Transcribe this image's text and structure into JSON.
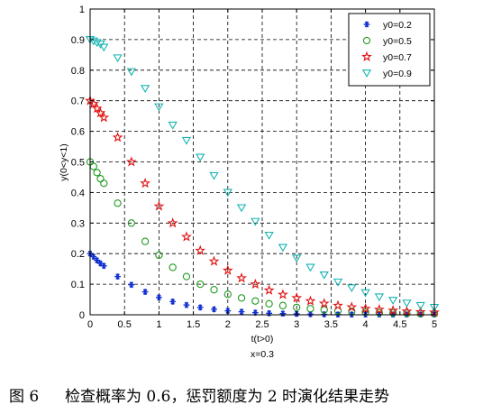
{
  "chart_data": {
    "type": "scatter",
    "title": "",
    "xlabel": "t(t>0)",
    "ylabel": "y(0<y<1)",
    "annotation": "x=0.3",
    "xlim": [
      0,
      5
    ],
    "ylim": [
      0,
      1
    ],
    "xticks": [
      0,
      0.5,
      1,
      1.5,
      2,
      2.5,
      3,
      3.5,
      4,
      4.5,
      5
    ],
    "xtick_labels": [
      "0",
      "0.5",
      "1",
      "1.5",
      "2",
      "2.5",
      "3",
      "3.5",
      "4",
      "4.5",
      "5"
    ],
    "yticks": [
      0,
      0.1,
      0.2,
      0.3,
      0.4,
      0.5,
      0.6,
      0.7,
      0.8,
      0.9,
      1
    ],
    "ytick_labels": [
      "0",
      "0.1",
      "0.2",
      "0.3",
      "0.4",
      "0.5",
      "0.6",
      "0.7",
      "0.8",
      "0.9",
      "1"
    ],
    "grid": true,
    "grid_style": "dashed",
    "legend_position": "top-right",
    "series": [
      {
        "name": "y0=0.2",
        "marker": "asterisk",
        "color": "#1030d0",
        "points": [
          [
            0,
            0.2
          ],
          [
            0.05,
            0.19
          ],
          [
            0.1,
            0.178
          ],
          [
            0.15,
            0.168
          ],
          [
            0.2,
            0.16
          ],
          [
            0.4,
            0.125
          ],
          [
            0.6,
            0.098
          ],
          [
            0.8,
            0.075
          ],
          [
            1,
            0.057
          ],
          [
            1.2,
            0.043
          ],
          [
            1.4,
            0.032
          ],
          [
            1.6,
            0.024
          ],
          [
            1.8,
            0.018
          ],
          [
            2,
            0.013
          ],
          [
            2.2,
            0.01
          ],
          [
            2.4,
            0.007
          ],
          [
            2.6,
            0.005
          ],
          [
            2.8,
            0.004
          ],
          [
            3,
            0.003
          ],
          [
            3.2,
            0.002
          ],
          [
            3.4,
            0.0015
          ],
          [
            3.6,
            0.001
          ],
          [
            3.8,
            0.001
          ],
          [
            4,
            0.001
          ],
          [
            4.2,
            0.001
          ],
          [
            4.4,
            0.001
          ],
          [
            4.6,
            0.001
          ],
          [
            4.8,
            0.001
          ],
          [
            5,
            0.001
          ]
        ]
      },
      {
        "name": "y0=0.5",
        "marker": "circle",
        "color": "#1f9a1f",
        "points": [
          [
            0,
            0.5
          ],
          [
            0.05,
            0.485
          ],
          [
            0.1,
            0.465
          ],
          [
            0.15,
            0.445
          ],
          [
            0.2,
            0.43
          ],
          [
            0.4,
            0.365
          ],
          [
            0.6,
            0.3
          ],
          [
            0.8,
            0.24
          ],
          [
            1,
            0.195
          ],
          [
            1.2,
            0.155
          ],
          [
            1.4,
            0.125
          ],
          [
            1.6,
            0.1
          ],
          [
            1.8,
            0.082
          ],
          [
            2,
            0.067
          ],
          [
            2.2,
            0.055
          ],
          [
            2.4,
            0.045
          ],
          [
            2.6,
            0.036
          ],
          [
            2.8,
            0.03
          ],
          [
            3,
            0.024
          ],
          [
            3.2,
            0.02
          ],
          [
            3.4,
            0.016
          ],
          [
            3.6,
            0.013
          ],
          [
            3.8,
            0.011
          ],
          [
            4,
            0.009
          ],
          [
            4.2,
            0.007
          ],
          [
            4.4,
            0.006
          ],
          [
            4.6,
            0.005
          ],
          [
            4.8,
            0.004
          ],
          [
            5,
            0.004
          ]
        ]
      },
      {
        "name": "y0=0.7",
        "marker": "pentagram",
        "color": "#e01010",
        "points": [
          [
            0,
            0.7
          ],
          [
            0.05,
            0.69
          ],
          [
            0.1,
            0.675
          ],
          [
            0.15,
            0.66
          ],
          [
            0.2,
            0.645
          ],
          [
            0.4,
            0.58
          ],
          [
            0.6,
            0.5
          ],
          [
            0.8,
            0.43
          ],
          [
            1,
            0.355
          ],
          [
            1.2,
            0.3
          ],
          [
            1.4,
            0.255
          ],
          [
            1.6,
            0.21
          ],
          [
            1.8,
            0.175
          ],
          [
            2,
            0.145
          ],
          [
            2.2,
            0.12
          ],
          [
            2.4,
            0.1
          ],
          [
            2.6,
            0.08
          ],
          [
            2.8,
            0.066
          ],
          [
            3,
            0.055
          ],
          [
            3.2,
            0.045
          ],
          [
            3.4,
            0.037
          ],
          [
            3.6,
            0.03
          ],
          [
            3.8,
            0.025
          ],
          [
            4,
            0.02
          ],
          [
            4.2,
            0.017
          ],
          [
            4.4,
            0.014
          ],
          [
            4.6,
            0.011
          ],
          [
            4.8,
            0.009
          ],
          [
            5,
            0.008
          ]
        ]
      },
      {
        "name": "y0=0.9",
        "marker": "triangle-down",
        "color": "#17b3b3",
        "points": [
          [
            0,
            0.9
          ],
          [
            0.05,
            0.895
          ],
          [
            0.1,
            0.89
          ],
          [
            0.15,
            0.885
          ],
          [
            0.2,
            0.875
          ],
          [
            0.4,
            0.84
          ],
          [
            0.6,
            0.795
          ],
          [
            0.8,
            0.74
          ],
          [
            1,
            0.68
          ],
          [
            1.2,
            0.62
          ],
          [
            1.4,
            0.57
          ],
          [
            1.6,
            0.515
          ],
          [
            1.8,
            0.455
          ],
          [
            2,
            0.4
          ],
          [
            2.2,
            0.35
          ],
          [
            2.4,
            0.305
          ],
          [
            2.6,
            0.26
          ],
          [
            2.8,
            0.22
          ],
          [
            3,
            0.185
          ],
          [
            3.2,
            0.155
          ],
          [
            3.4,
            0.13
          ],
          [
            3.6,
            0.107
          ],
          [
            3.8,
            0.088
          ],
          [
            4,
            0.072
          ],
          [
            4.2,
            0.058
          ],
          [
            4.4,
            0.047
          ],
          [
            4.6,
            0.038
          ],
          [
            4.8,
            0.03
          ],
          [
            5,
            0.024
          ]
        ]
      }
    ]
  },
  "caption": {
    "number": "图 6",
    "text": "检查概率为 0.6，惩罚额度为 2 时演化结果走势"
  }
}
